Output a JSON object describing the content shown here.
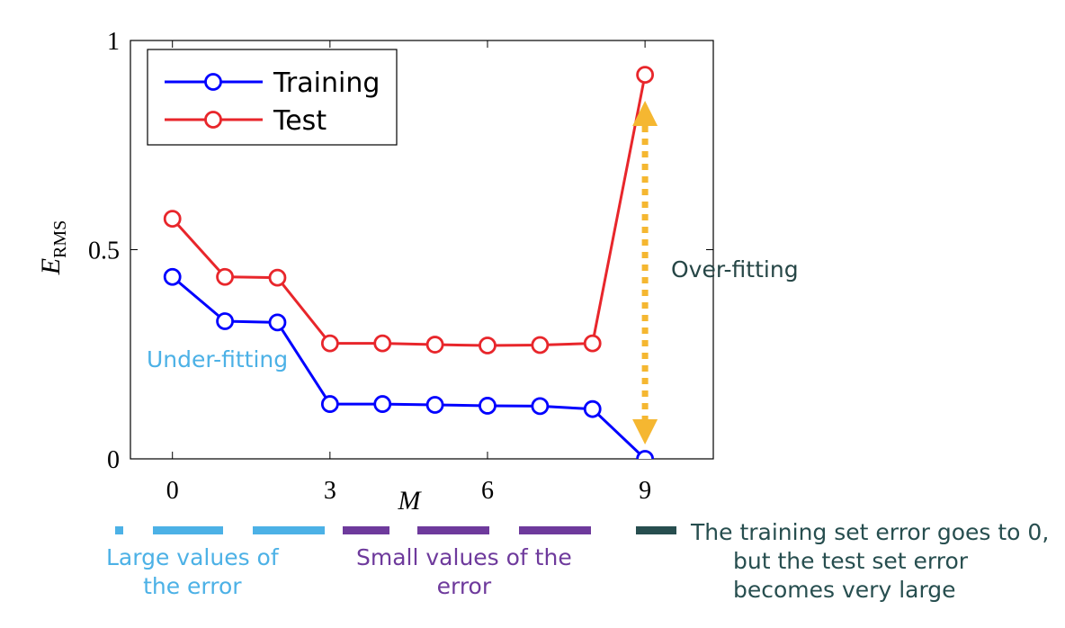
{
  "chart_data": {
    "type": "line",
    "xlabel": "M",
    "ylabel_main": "E",
    "ylabel_sub": "RMS",
    "xlim": [
      -0.8,
      10.3
    ],
    "ylim": [
      0,
      1
    ],
    "xticks": [
      "0",
      "3",
      "6",
      "9"
    ],
    "yticks": [
      "0",
      "0.5",
      "1"
    ],
    "x": [
      0,
      1,
      2,
      3,
      4,
      5,
      6,
      7,
      8,
      9
    ],
    "series": [
      {
        "name": "Training",
        "color": "#0000ff",
        "values": [
          0.435,
          0.329,
          0.326,
          0.131,
          0.131,
          0.129,
          0.127,
          0.126,
          0.119,
          0.0
        ]
      },
      {
        "name": "Test",
        "color": "#e8262b",
        "values": [
          0.574,
          0.435,
          0.433,
          0.276,
          0.276,
          0.273,
          0.271,
          0.272,
          0.276,
          0.918
        ]
      }
    ],
    "legend": [
      "Training",
      "Test"
    ],
    "annotations": {
      "under_fitting": "Under-fitting",
      "over_fitting": "Over-fitting"
    },
    "arrow_color": "#f5b731"
  },
  "legend_bars": {
    "large": {
      "lines": [
        "Large values of",
        "the error"
      ],
      "color": "#4cb1e6"
    },
    "small": {
      "lines": [
        "Small values of the",
        "error"
      ],
      "color": "#6e3a9c"
    },
    "overfit": {
      "lines": [
        "The training set error goes to 0,",
        "but the test set error",
        "becomes very large"
      ],
      "color": "#274e4f"
    }
  }
}
